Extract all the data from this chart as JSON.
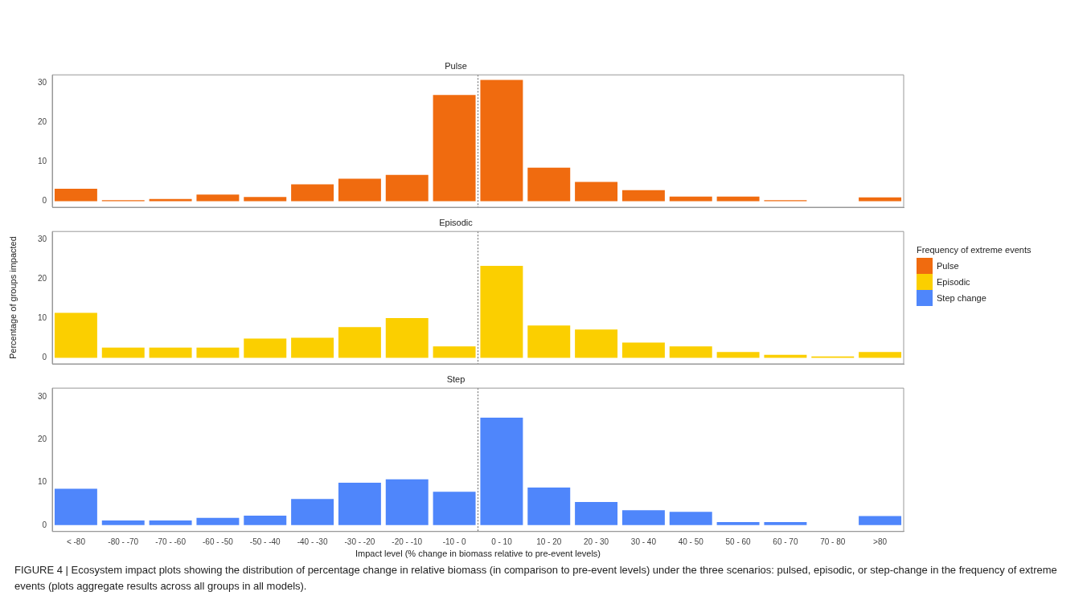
{
  "chart_data": [
    {
      "type": "bar",
      "title": "Pulse",
      "categories": [
        null,
        null,
        null,
        null,
        null,
        null,
        null,
        null,
        null,
        null,
        null,
        null,
        null,
        null,
        null,
        null,
        null,
        null
      ],
      "series": [
        {
          "name": "Pulse",
          "color": "#f06b0f",
          "values": [
            3.2,
            0.3,
            0.6,
            1.7,
            1.1,
            4.3,
            5.7,
            6.7,
            26.9,
            30.7,
            8.5,
            4.9,
            2.8,
            1.2,
            1.2,
            0.3,
            0,
            1.0
          ]
        }
      ],
      "ylim": [
        -1.5,
        32
      ],
      "yticks": [
        0,
        10,
        20,
        30
      ],
      "grid": false,
      "legend": "right",
      "tick_labels": "y"
    },
    {
      "type": "bar",
      "title": "Episodic",
      "ylabel": "Percentage of groups impacted",
      "legend_title": "Frequency of extreme events",
      "categories": [
        null,
        null,
        null,
        null,
        null,
        null,
        null,
        null,
        null,
        null,
        null,
        null,
        null,
        null,
        null,
        null,
        null,
        null
      ],
      "series": [
        {
          "name": "Episodic",
          "color": "#fbcf00",
          "values": [
            11.4,
            2.6,
            2.6,
            2.6,
            4.9,
            5.1,
            7.8,
            10.1,
            2.9,
            23.3,
            8.2,
            7.2,
            3.9,
            2.9,
            1.5,
            0.8,
            0.4,
            1.5
          ]
        }
      ],
      "ylim": [
        -1.5,
        32
      ],
      "yticks": [
        0,
        10,
        20,
        30
      ],
      "grid": false,
      "legend": "right",
      "tick_labels": "y"
    },
    {
      "type": "bar",
      "title": "Step",
      "xlabel": "Impact level (% change in biomass relative to pre-event levels)",
      "categories": [
        "< -80",
        "-80 - -70",
        "-70 - -60",
        "-60 - -50",
        "-50 - -40",
        "-40 - -30",
        "-30 - -20",
        "-20 - -10",
        "-10 - 0",
        "0 - 10",
        "10 - 20",
        "20 - 30",
        "30 - 40",
        "40 - 50",
        "50 - 60",
        "60 - 70",
        "70 - 80",
        ">80"
      ],
      "series": [
        {
          "name": "Step change",
          "color": "#4f86fb",
          "values": [
            8.5,
            1.1,
            1.1,
            1.7,
            2.2,
            6.1,
            9.9,
            10.7,
            7.8,
            25.1,
            8.8,
            5.4,
            3.5,
            3.1,
            0.7,
            0.7,
            0,
            2.1
          ]
        }
      ],
      "ylim": [
        -1.5,
        32
      ],
      "yticks": [
        0,
        10,
        20,
        30
      ],
      "grid": false,
      "legend": "right",
      "annotations": [
        "FIGURE 4 | Ecosystem impact plots showing the distribution of percentage change in relative biomass (in comparison to pre-event levels) under the three scenarios: pulsed, episodic, or step-change in the frequency of extreme events (plots aggregate results across all groups in all models)."
      ]
    }
  ]
}
